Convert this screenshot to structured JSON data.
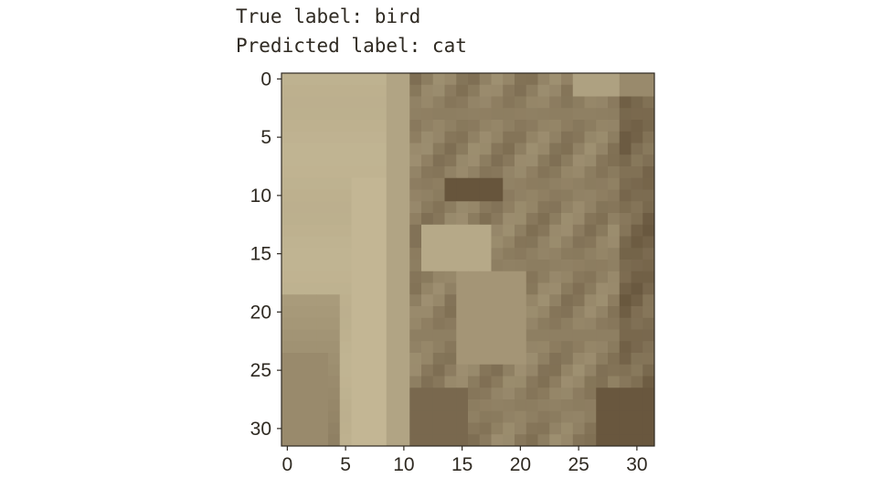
{
  "text": {
    "true_label": "True label: bird",
    "predicted_label": "Predicted label: cat"
  },
  "chart_data": {
    "type": "heatmap",
    "title": "",
    "xlabel": "",
    "ylabel": "",
    "xlim": [
      -0.5,
      31.5
    ],
    "ylim": [
      31.5,
      -0.5
    ],
    "x_ticks": [
      0,
      5,
      10,
      15,
      20,
      25,
      30
    ],
    "y_ticks": [
      0,
      5,
      10,
      15,
      20,
      25,
      30
    ],
    "grid": false,
    "legend": "none",
    "colors": {
      "axis": "#2f2a22",
      "background_light": "#c9bd9a",
      "background_dark": "#5e4c34",
      "mid": "#8f7b5c"
    }
  }
}
